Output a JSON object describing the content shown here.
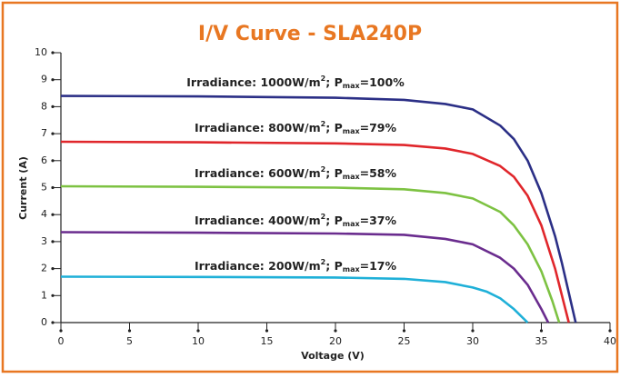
{
  "chart_data": {
    "type": "line",
    "title": "I/V Curve - SLA240P",
    "xlabel": "Voltage (V)",
    "ylabel": "Current (A)",
    "xlim": [
      0,
      40
    ],
    "ylim": [
      0,
      10
    ],
    "xticks": [
      0,
      5,
      10,
      15,
      20,
      25,
      30,
      35,
      40
    ],
    "yticks": [
      0,
      1,
      2,
      3,
      4,
      5,
      6,
      7,
      8,
      9,
      10
    ],
    "series": [
      {
        "color": "#2b2f86",
        "x": [
          0,
          10,
          20,
          25,
          28,
          30,
          32,
          33,
          34,
          35,
          36,
          36.5,
          37,
          37.5
        ],
        "values": [
          8.4,
          8.38,
          8.33,
          8.25,
          8.1,
          7.9,
          7.3,
          6.8,
          6.0,
          4.8,
          3.2,
          2.2,
          1.1,
          0
        ]
      },
      {
        "color": "#e0262b",
        "x": [
          0,
          10,
          20,
          25,
          28,
          30,
          32,
          33,
          34,
          35,
          36,
          36.5,
          37
        ],
        "values": [
          6.7,
          6.68,
          6.64,
          6.58,
          6.45,
          6.25,
          5.8,
          5.4,
          4.7,
          3.6,
          2.0,
          1.0,
          0
        ]
      },
      {
        "color": "#7dc242",
        "x": [
          0,
          10,
          20,
          25,
          28,
          30,
          32,
          33,
          34,
          35,
          35.8,
          36.3
        ],
        "values": [
          5.05,
          5.03,
          5.0,
          4.94,
          4.8,
          4.6,
          4.1,
          3.6,
          2.9,
          1.9,
          0.8,
          0
        ]
      },
      {
        "color": "#6a2c8e",
        "x": [
          0,
          10,
          20,
          25,
          28,
          30,
          32,
          33,
          34,
          35,
          35.5
        ],
        "values": [
          3.35,
          3.33,
          3.3,
          3.25,
          3.1,
          2.9,
          2.4,
          2.0,
          1.4,
          0.5,
          0
        ]
      },
      {
        "color": "#1fb0d8",
        "x": [
          0,
          10,
          20,
          25,
          28,
          30,
          31,
          32,
          33,
          34
        ],
        "values": [
          1.7,
          1.69,
          1.67,
          1.62,
          1.5,
          1.3,
          1.15,
          0.9,
          0.5,
          0
        ]
      }
    ],
    "annotations": [
      {
        "parts": [
          "Irradiance: 1000W/m",
          "2",
          "; P",
          "max",
          "=100%"
        ]
      },
      {
        "parts": [
          "Irradiance: 800W/m",
          "2",
          "; P",
          "max",
          "=79%"
        ]
      },
      {
        "parts": [
          "Irradiance: 600W/m",
          "2",
          "; P",
          "max",
          "=58%"
        ]
      },
      {
        "parts": [
          "Irradiance: 400W/m",
          "2",
          "; P",
          "max",
          "=37%"
        ]
      },
      {
        "parts": [
          "Irradiance: 200W/m",
          "2",
          "; P",
          "max",
          "=17%"
        ]
      }
    ]
  }
}
